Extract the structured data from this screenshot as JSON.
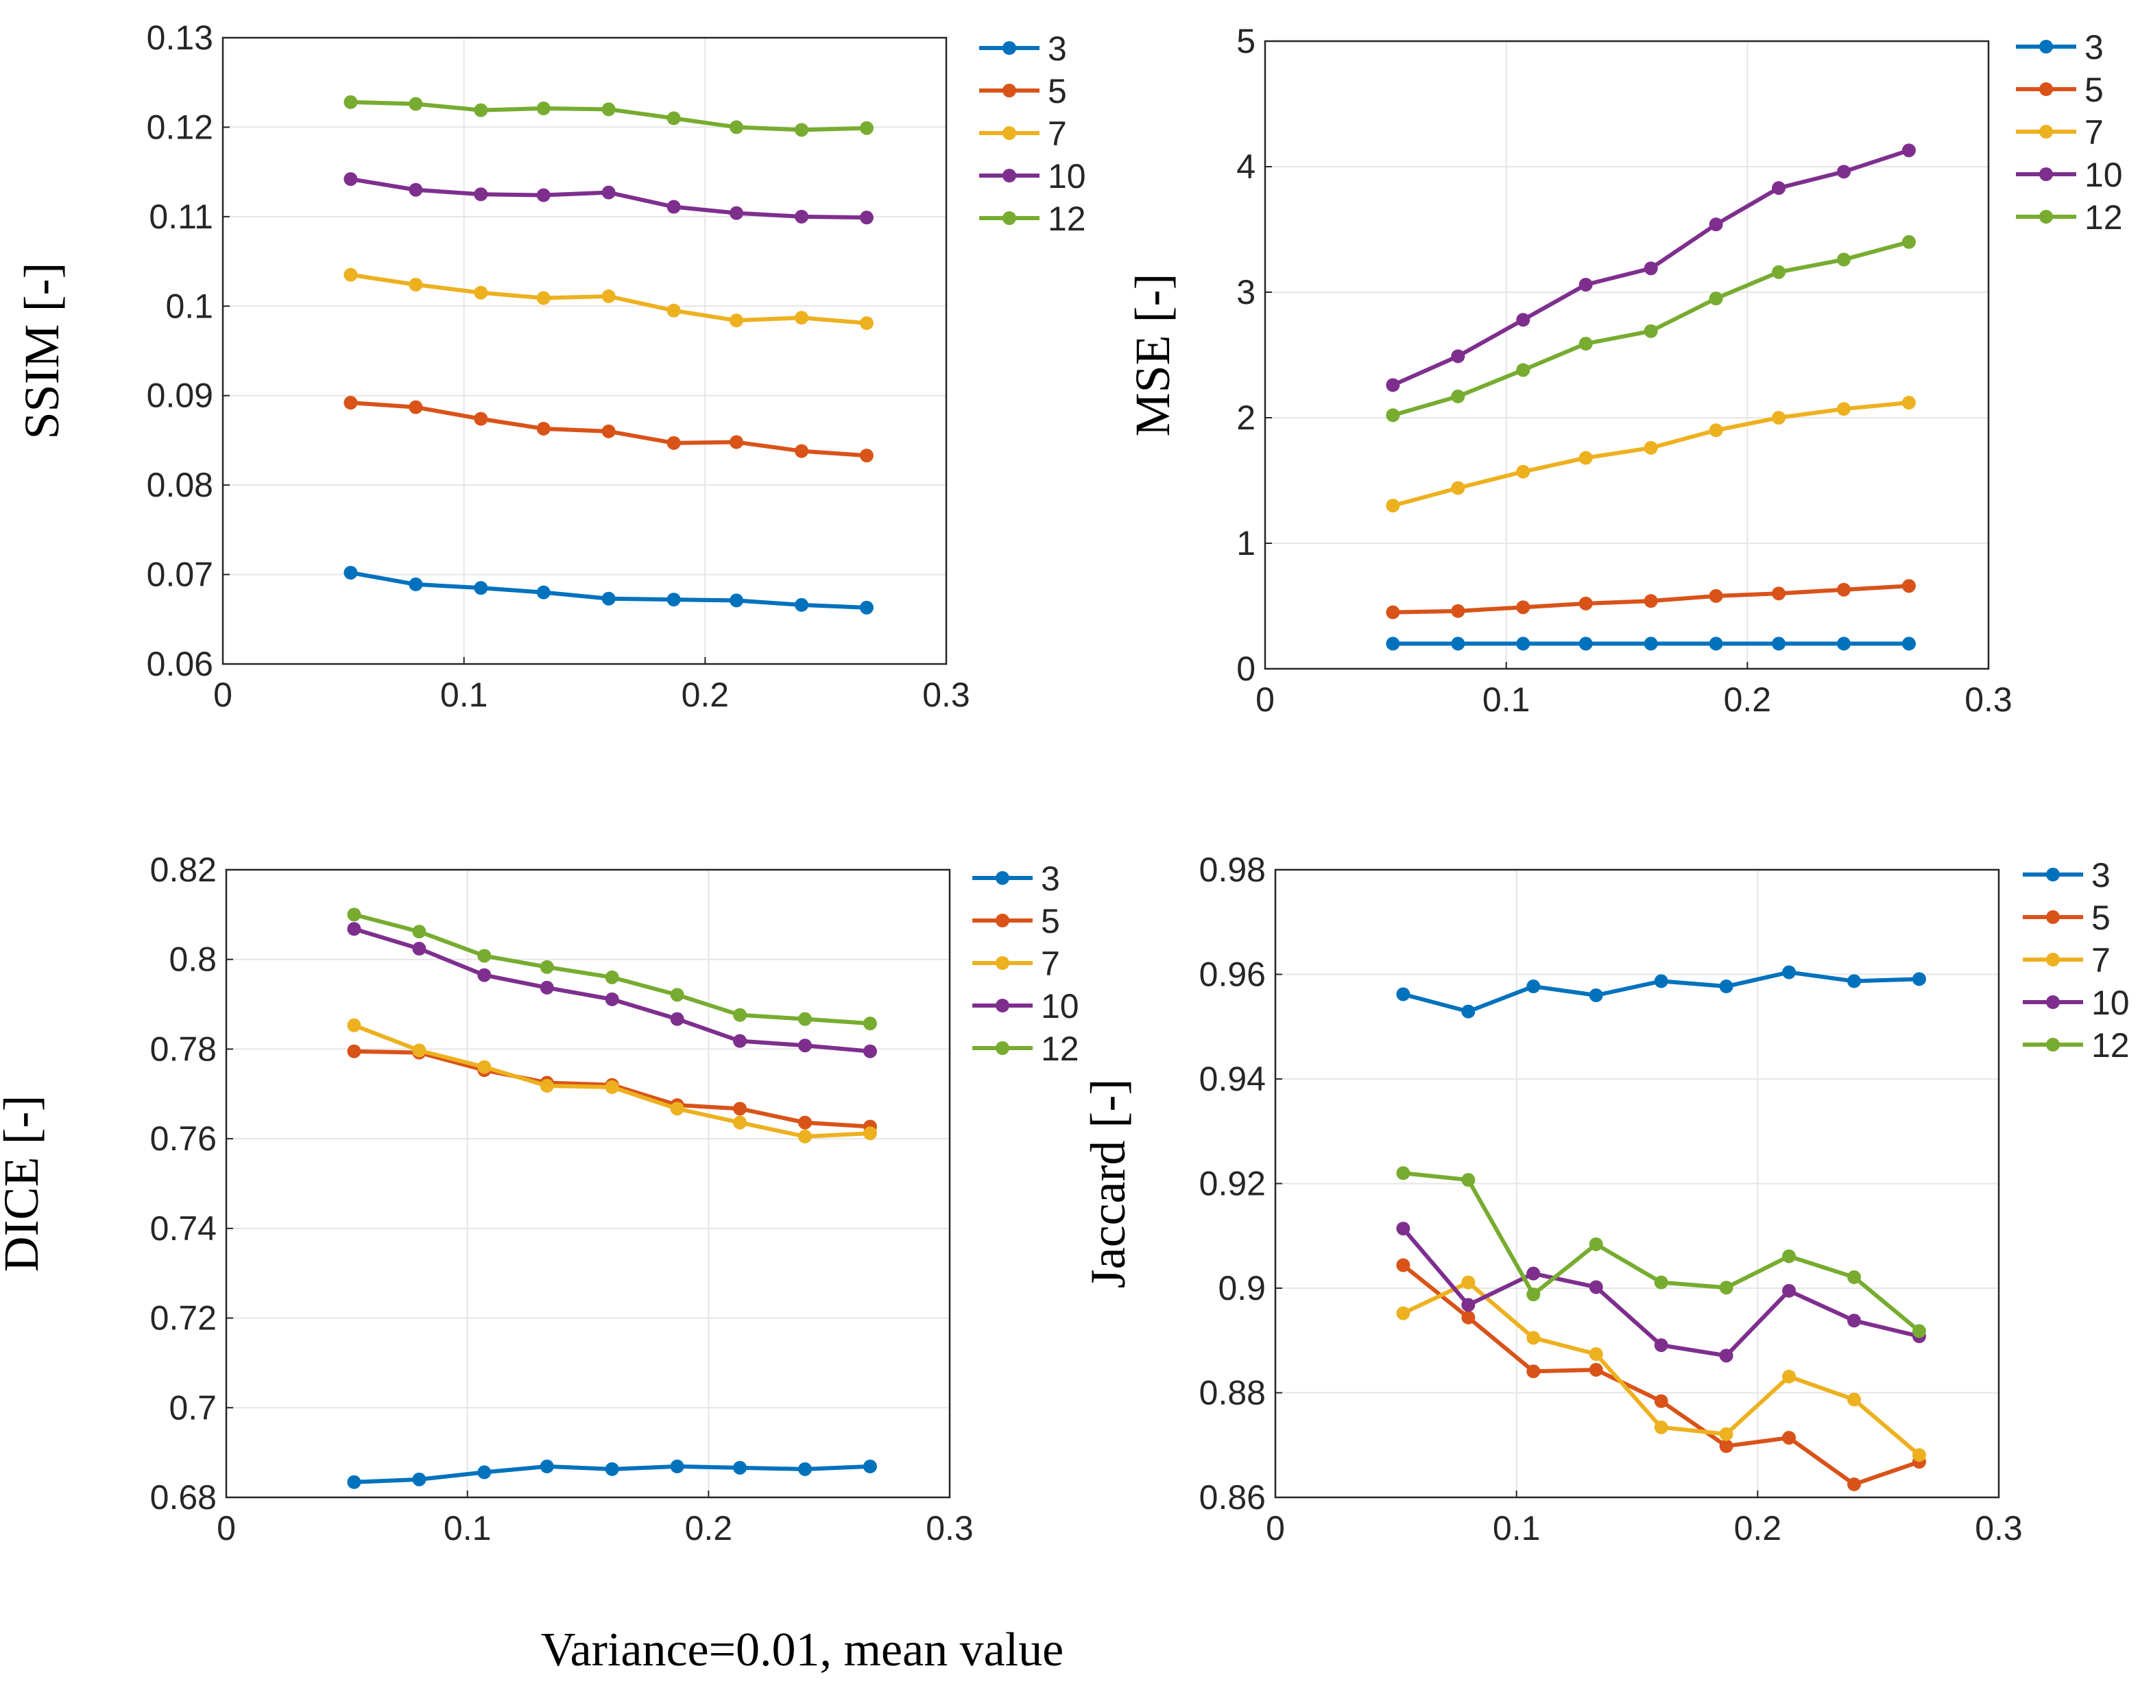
{
  "figure_caption": "Variance=0.01, mean value",
  "chart_data": [
    {
      "type": "line",
      "id": "ssim",
      "ylabel": "SSIM [-]",
      "xlim": [
        0,
        0.3
      ],
      "ylim": [
        0.06,
        0.13
      ],
      "xticks": [
        0,
        0.1,
        0.2,
        0.3
      ],
      "xtick_labels": [
        "0",
        "0.1",
        "0.2",
        "0.3"
      ],
      "yticks": [
        0.06,
        0.07,
        0.08,
        0.09,
        0.1,
        0.11,
        0.12,
        0.13
      ],
      "ytick_labels": [
        "0.06",
        "0.07",
        "0.08",
        "0.09",
        "0.1",
        "0.11",
        "0.12",
        "0.13"
      ],
      "grid": true,
      "legend_position": "outside-top-right",
      "x": [
        0.053,
        0.08,
        0.107,
        0.133,
        0.16,
        0.187,
        0.213,
        0.24,
        0.267
      ],
      "series": [
        {
          "name": "3",
          "color": "#0072BD",
          "values": [
            0.0702,
            0.0689,
            0.0685,
            0.068,
            0.0673,
            0.0672,
            0.0671,
            0.0666,
            0.0663
          ]
        },
        {
          "name": "5",
          "color": "#D95319",
          "values": [
            0.0892,
            0.0887,
            0.0874,
            0.0863,
            0.086,
            0.0847,
            0.0848,
            0.0838,
            0.0833
          ]
        },
        {
          "name": "7",
          "color": "#EDB120",
          "values": [
            0.1035,
            0.1024,
            0.1015,
            0.1009,
            0.1011,
            0.0995,
            0.0984,
            0.0987,
            0.0981
          ]
        },
        {
          "name": "10",
          "color": "#7E2F8E",
          "values": [
            0.1142,
            0.113,
            0.1125,
            0.1124,
            0.1127,
            0.1111,
            0.1104,
            0.11,
            0.1099
          ]
        },
        {
          "name": "12",
          "color": "#77AC30",
          "values": [
            0.1228,
            0.1226,
            0.1219,
            0.1221,
            0.122,
            0.121,
            0.12,
            0.1197,
            0.1199
          ]
        }
      ]
    },
    {
      "type": "line",
      "id": "mse",
      "ylabel": "MSE [-]",
      "xlim": [
        0,
        0.3
      ],
      "ylim": [
        0,
        5
      ],
      "xticks": [
        0,
        0.1,
        0.2,
        0.3
      ],
      "xtick_labels": [
        "0",
        "0.1",
        "0.2",
        "0.3"
      ],
      "yticks": [
        0,
        1,
        2,
        3,
        4,
        5
      ],
      "ytick_labels": [
        "0",
        "1",
        "2",
        "3",
        "4",
        "5"
      ],
      "grid": true,
      "legend_position": "outside-top-right",
      "x": [
        0.053,
        0.08,
        0.107,
        0.133,
        0.16,
        0.187,
        0.213,
        0.24,
        0.267
      ],
      "series": [
        {
          "name": "3",
          "color": "#0072BD",
          "values": [
            0.2,
            0.2,
            0.2,
            0.2,
            0.2,
            0.2,
            0.2,
            0.2,
            0.2
          ]
        },
        {
          "name": "5",
          "color": "#D95319",
          "values": [
            0.45,
            0.46,
            0.49,
            0.52,
            0.54,
            0.58,
            0.6,
            0.63,
            0.66
          ]
        },
        {
          "name": "7",
          "color": "#EDB120",
          "values": [
            1.3,
            1.44,
            1.57,
            1.68,
            1.76,
            1.9,
            2.0,
            2.07,
            2.12
          ]
        },
        {
          "name": "10",
          "color": "#7E2F8E",
          "values": [
            2.26,
            2.49,
            2.78,
            3.06,
            3.19,
            3.54,
            3.83,
            3.96,
            4.13
          ]
        },
        {
          "name": "12",
          "color": "#77AC30",
          "values": [
            2.02,
            2.17,
            2.38,
            2.59,
            2.69,
            2.95,
            3.16,
            3.26,
            3.4
          ]
        }
      ]
    },
    {
      "type": "line",
      "id": "dice",
      "ylabel": "DICE [-]",
      "xlim": [
        0,
        0.3
      ],
      "ylim": [
        0.68,
        0.82
      ],
      "xticks": [
        0,
        0.1,
        0.2,
        0.3
      ],
      "xtick_labels": [
        "0",
        "0.1",
        "0.2",
        "0.3"
      ],
      "yticks": [
        0.68,
        0.7,
        0.72,
        0.74,
        0.76,
        0.78,
        0.8,
        0.82
      ],
      "ytick_labels": [
        "0.68",
        "0.7",
        "0.72",
        "0.74",
        "0.76",
        "0.78",
        "0.8",
        "0.82"
      ],
      "grid": true,
      "legend_position": "outside-top-right",
      "x": [
        0.053,
        0.08,
        0.107,
        0.133,
        0.16,
        0.187,
        0.213,
        0.24,
        0.267
      ],
      "series": [
        {
          "name": "3",
          "color": "#0072BD",
          "values": [
            0.6834,
            0.684,
            0.6856,
            0.6869,
            0.6863,
            0.6869,
            0.6866,
            0.6863,
            0.6869
          ]
        },
        {
          "name": "5",
          "color": "#D95319",
          "values": [
            0.7795,
            0.7792,
            0.7753,
            0.7725,
            0.772,
            0.7675,
            0.7667,
            0.7636,
            0.7627
          ]
        },
        {
          "name": "7",
          "color": "#EDB120",
          "values": [
            0.7853,
            0.7797,
            0.776,
            0.7718,
            0.7715,
            0.7667,
            0.7636,
            0.7605,
            0.7612
          ]
        },
        {
          "name": "10",
          "color": "#7E2F8E",
          "values": [
            0.8068,
            0.8024,
            0.7965,
            0.7937,
            0.7911,
            0.7867,
            0.7818,
            0.7808,
            0.7795
          ]
        },
        {
          "name": "12",
          "color": "#77AC30",
          "values": [
            0.81,
            0.8062,
            0.8008,
            0.7983,
            0.796,
            0.7921,
            0.7876,
            0.7867,
            0.7857
          ]
        }
      ]
    },
    {
      "type": "line",
      "id": "jaccard",
      "ylabel": "Jaccard [-]",
      "xlim": [
        0,
        0.3
      ],
      "ylim": [
        0.86,
        0.98
      ],
      "xticks": [
        0,
        0.1,
        0.2,
        0.3
      ],
      "xtick_labels": [
        "0",
        "0.1",
        "0.2",
        "0.3"
      ],
      "yticks": [
        0.86,
        0.88,
        0.9,
        0.92,
        0.94,
        0.96,
        0.98
      ],
      "ytick_labels": [
        "0.86",
        "0.88",
        "0.9",
        "0.92",
        "0.94",
        "0.96",
        "0.98"
      ],
      "grid": true,
      "legend_position": "inside-top-right",
      "x": [
        0.053,
        0.08,
        0.107,
        0.133,
        0.16,
        0.187,
        0.213,
        0.24,
        0.267
      ],
      "series": [
        {
          "name": "3",
          "color": "#0072BD",
          "values": [
            0.9562,
            0.9529,
            0.9577,
            0.956,
            0.9587,
            0.9577,
            0.9604,
            0.9587,
            0.9591
          ]
        },
        {
          "name": "5",
          "color": "#D95319",
          "values": [
            0.9044,
            0.8944,
            0.8841,
            0.8844,
            0.8784,
            0.8698,
            0.8714,
            0.8625,
            0.8668
          ]
        },
        {
          "name": "7",
          "color": "#EDB120",
          "values": [
            0.8952,
            0.9011,
            0.8905,
            0.8874,
            0.8734,
            0.8721,
            0.8831,
            0.8787,
            0.8681
          ]
        },
        {
          "name": "10",
          "color": "#7E2F8E",
          "values": [
            0.9114,
            0.8968,
            0.9028,
            0.9002,
            0.8891,
            0.8871,
            0.8995,
            0.8938,
            0.8908
          ]
        },
        {
          "name": "12",
          "color": "#77AC30",
          "values": [
            0.922,
            0.9207,
            0.8988,
            0.9084,
            0.9011,
            0.9001,
            0.9061,
            0.9021,
            0.8918
          ]
        }
      ]
    }
  ]
}
